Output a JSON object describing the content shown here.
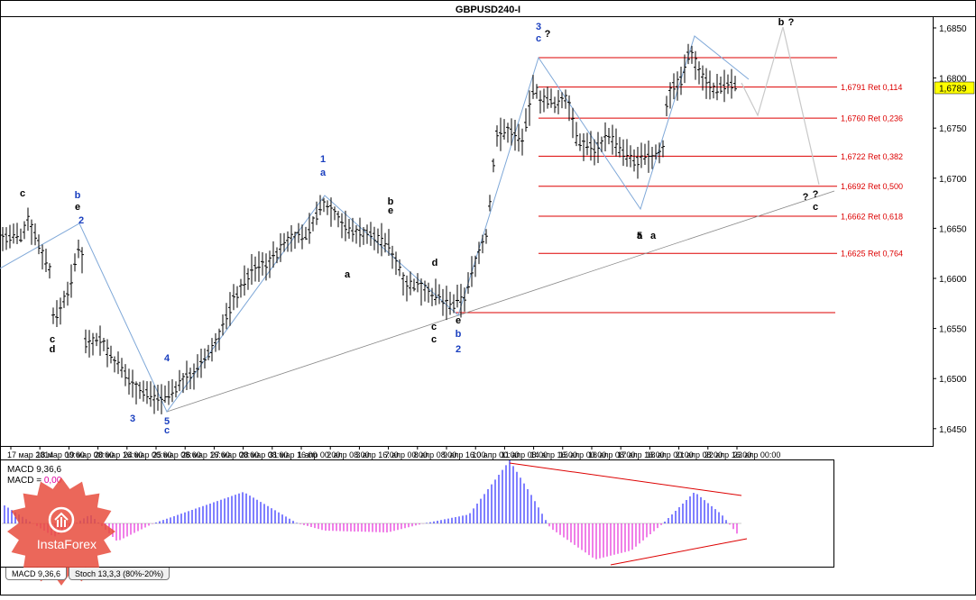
{
  "window": {
    "title": "GBPUSD240-I"
  },
  "price_axis": {
    "labels": [
      "1,6850",
      "1,6800",
      "1,6750",
      "1,6700",
      "1,6650",
      "1,6600",
      "1,6550",
      "1,6500",
      "1,6450"
    ],
    "current_price": "1,6789",
    "current_price_color": "#ffff00"
  },
  "time_axis": {
    "labels": [
      "17 мар 2014",
      "18 мар 00:00",
      "19 мар 08:00",
      "20 мар 16:00",
      "24 мар 00:00",
      "25 мар 08:00",
      "26 мар 16:00",
      "27 мар 00:00",
      "28 мар 08:00",
      "31 мар 16:00",
      "1 апр 00:00",
      "2 апр 08:00",
      "3 апр 16:00",
      "7 апр 00:00",
      "8 апр 08:00",
      "9 апр 16:00",
      "10 апр 00:00",
      "11 апр 08:00",
      "14 апр 16:00",
      "15 апр 00:00",
      "16 апр 08:00",
      "17 апр 16:00",
      "18 апр 00:00",
      "21 апр 08:00",
      "22 апр 16:00",
      "23 апр 00:00"
    ]
  },
  "fib_levels": [
    {
      "price": "1,6791",
      "label": "1,6791 Ret 0,114"
    },
    {
      "price": "1,6760",
      "label": "1,6760 Ret 0,236"
    },
    {
      "price": "1,6722",
      "label": "1,6722 Ret 0,382"
    },
    {
      "price": "1,6692",
      "label": "1,6692 Ret 0,500"
    },
    {
      "price": "1,6662",
      "label": "1,6662 Ret 0,618"
    },
    {
      "price": "1,6625",
      "label": "1,6625 Ret 0,764"
    }
  ],
  "colors": {
    "fib_line": "#dd0000",
    "fib_text": "#dd0000",
    "wave_blue": "#1a3fbf",
    "trendline": "#a0a0a0",
    "macd_positive": "#0000ff",
    "macd_negative": "#e000d0",
    "logo_red": "#e84c3d"
  },
  "wave_labels": [
    {
      "text": "3",
      "color": "blue"
    },
    {
      "text": "c",
      "color": "blue"
    },
    {
      "text": "?",
      "color": "black"
    },
    {
      "text": "b",
      "color": "black"
    },
    {
      "text": "?",
      "color": "black"
    },
    {
      "text": "1",
      "color": "blue"
    },
    {
      "text": "a",
      "color": "blue"
    },
    {
      "text": "b",
      "color": "blue"
    },
    {
      "text": "e",
      "color": "black"
    },
    {
      "text": "c",
      "color": "black"
    },
    {
      "text": "2",
      "color": "blue"
    },
    {
      "text": "c",
      "color": "black"
    },
    {
      "text": "d",
      "color": "black"
    },
    {
      "text": "4",
      "color": "blue"
    },
    {
      "text": "5",
      "color": "blue"
    },
    {
      "text": "c",
      "color": "blue"
    },
    {
      "text": "3",
      "color": "blue"
    },
    {
      "text": "d",
      "color": "black"
    },
    {
      "text": "c",
      "color": "black"
    },
    {
      "text": "c",
      "color": "black"
    },
    {
      "text": "e",
      "color": "black"
    },
    {
      "text": "b",
      "color": "blue"
    },
    {
      "text": "2",
      "color": "blue"
    },
    {
      "text": "b",
      "color": "black"
    },
    {
      "text": "e",
      "color": "black"
    },
    {
      "text": "a",
      "color": "black"
    },
    {
      "text": "a",
      "color": "black"
    },
    {
      "text": "5",
      "color": "black"
    },
    {
      "text": "a",
      "color": "black"
    },
    {
      "text": "?",
      "color": "black"
    },
    {
      "text": "?",
      "color": "black"
    },
    {
      "text": "c",
      "color": "black"
    },
    {
      "text": "4",
      "color": "blue"
    }
  ],
  "indicator": {
    "name": "MACD 9,36,6",
    "macd_label": "MACD = ",
    "macd_value": "0,00"
  },
  "tabs": [
    {
      "label": "MACD 9,36,6"
    },
    {
      "label": "Stoch 13,3,3 (80%-20%)"
    }
  ],
  "logo": {
    "text": "InstaForex"
  }
}
